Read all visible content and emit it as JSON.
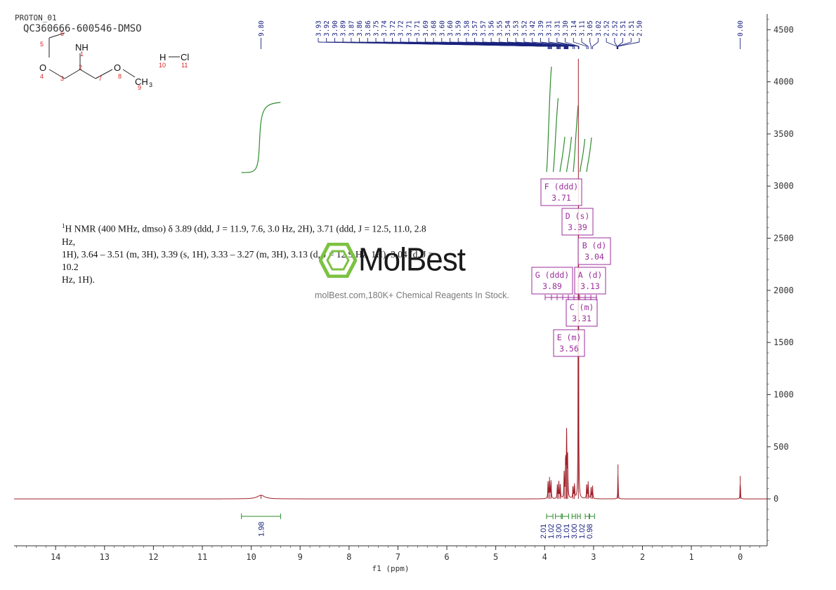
{
  "header": {
    "experiment": "PROTON_01",
    "sample": "QC360666-600546-DMSO"
  },
  "molecule": {
    "labels": {
      "nh": "NH",
      "o": "O",
      "h": "H",
      "cl": "Cl",
      "ch3": "CH",
      "sub3": "3"
    },
    "atom_numbers": [
      "1",
      "2",
      "3",
      "4",
      "5",
      "6",
      "7",
      "8",
      "9",
      "10",
      "11"
    ]
  },
  "description": {
    "line1_pre": "H NMR (400 MHz, dmso) δ 3.89 (ddd, ",
    "line1_text": "J = 11.9, 7.6, 3.0 Hz, 2H), 3.71 (ddd, J = 12.5, 11.0, 2.8 Hz,",
    "line2": "1H), 3.64 – 3.51 (m, 3H), 3.39 (s, 1H), 3.33 – 3.27 (m, 3H), 3.13 (d, J = 12.9 Hz, 1H), 3.04 (d, J = 10.2",
    "line3": "Hz, 1H).",
    "sup": "1"
  },
  "watermark": {
    "brand": "MolBest",
    "tagline": "molBest.com,180K+ Chemical Reagents In Stock."
  },
  "colors": {
    "spectrum": "#a0202a",
    "peak_labels": "#1a237e",
    "integral": "#2e8b2e",
    "multiplet_box": "#9b2f9b",
    "axis": "#333333",
    "brand_green": "#7cc242"
  },
  "chart_data": {
    "type": "line",
    "xlabel": "f1 (ppm)",
    "x_ticks": [
      14,
      13,
      12,
      11,
      10,
      9,
      8,
      7,
      6,
      5,
      4,
      3,
      2,
      1,
      0
    ],
    "x_range": [
      14.85,
      -0.55
    ],
    "y_ticks": [
      0,
      500,
      1000,
      1500,
      2000,
      2500,
      3000,
      3500,
      4000,
      4500
    ],
    "y_range": [
      -450,
      4650
    ],
    "peak_labels": [
      "9.80",
      "3.93",
      "3.92",
      "3.90",
      "3.89",
      "3.87",
      "3.86",
      "3.86",
      "3.75",
      "3.74",
      "3.72",
      "3.72",
      "3.71",
      "3.71",
      "3.69",
      "3.68",
      "3.60",
      "3.60",
      "3.59",
      "3.58",
      "3.57",
      "3.57",
      "3.56",
      "3.55",
      "3.54",
      "3.53",
      "3.52",
      "3.42",
      "3.39",
      "3.31",
      "3.31",
      "3.30",
      "3.14",
      "3.11",
      "3.05",
      "3.02",
      "2.52",
      "2.52",
      "2.51",
      "2.51",
      "2.50",
      "0.00"
    ],
    "peaks": [
      {
        "ppm": 9.8,
        "height": 35,
        "width": 0.09
      },
      {
        "ppm": 3.93,
        "height": 170,
        "width": 0.006
      },
      {
        "ppm": 3.9,
        "height": 210,
        "width": 0.006
      },
      {
        "ppm": 3.87,
        "height": 180,
        "width": 0.006
      },
      {
        "ppm": 3.74,
        "height": 140,
        "width": 0.006
      },
      {
        "ppm": 3.71,
        "height": 160,
        "width": 0.006
      },
      {
        "ppm": 3.68,
        "height": 130,
        "width": 0.006
      },
      {
        "ppm": 3.6,
        "height": 260,
        "width": 0.006
      },
      {
        "ppm": 3.57,
        "height": 420,
        "width": 0.006
      },
      {
        "ppm": 3.55,
        "height": 640,
        "width": 0.006
      },
      {
        "ppm": 3.53,
        "height": 380,
        "width": 0.006
      },
      {
        "ppm": 3.42,
        "height": 120,
        "width": 0.006
      },
      {
        "ppm": 3.39,
        "height": 150,
        "width": 0.006
      },
      {
        "ppm": 3.31,
        "height": 4220,
        "width": 0.004
      },
      {
        "ppm": 3.14,
        "height": 140,
        "width": 0.006
      },
      {
        "ppm": 3.11,
        "height": 170,
        "width": 0.006
      },
      {
        "ppm": 3.05,
        "height": 110,
        "width": 0.006
      },
      {
        "ppm": 3.02,
        "height": 120,
        "width": 0.006
      },
      {
        "ppm": 2.5,
        "height": 330,
        "width": 0.004
      },
      {
        "ppm": 0.0,
        "height": 220,
        "width": 0.004
      }
    ],
    "integrals": [
      {
        "from": 10.2,
        "to": 9.4,
        "value": "1.98"
      },
      {
        "from": 3.96,
        "to": 3.83,
        "value": "2.01"
      },
      {
        "from": 3.78,
        "to": 3.66,
        "value": "1.02"
      },
      {
        "from": 3.64,
        "to": 3.51,
        "value": "3.00"
      },
      {
        "from": 3.44,
        "to": 3.37,
        "value": "1.01"
      },
      {
        "from": 3.33,
        "to": 3.27,
        "value": "3.00"
      },
      {
        "from": 3.17,
        "to": 3.09,
        "value": "1.02"
      },
      {
        "from": 3.08,
        "to": 2.98,
        "value": "0.98"
      }
    ],
    "multiplets": [
      {
        "label": "F (ddd)",
        "value": "3.71",
        "ppm": 3.71
      },
      {
        "label": "D (s)",
        "value": "3.39",
        "ppm": 3.39
      },
      {
        "label": "B (d)",
        "value": "3.04",
        "ppm": 3.04
      },
      {
        "label": "G (ddd)",
        "value": "3.89",
        "ppm": 3.89
      },
      {
        "label": "A (d)",
        "value": "3.13",
        "ppm": 3.13
      },
      {
        "label": "C (m)",
        "value": "3.31",
        "ppm": 3.31
      },
      {
        "label": "E (m)",
        "value": "3.56",
        "ppm": 3.56
      }
    ]
  }
}
